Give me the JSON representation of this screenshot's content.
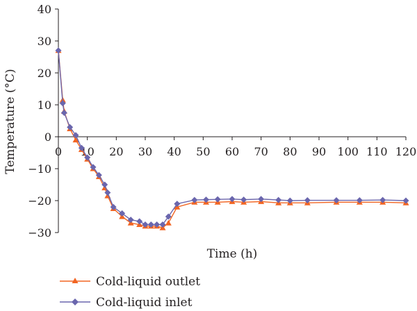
{
  "chart_data": {
    "type": "line",
    "xlabel": "Time (h)",
    "ylabel": "Temperature (°C)",
    "xlim": [
      0,
      120
    ],
    "ylim": [
      -30,
      40
    ],
    "xticks": [
      0,
      10,
      20,
      30,
      40,
      50,
      60,
      70,
      80,
      90,
      100,
      110,
      120
    ],
    "yticks": [
      40,
      30,
      20,
      10,
      0,
      -10,
      -20,
      -30
    ],
    "xtick_labels": [
      "0",
      "10",
      "20",
      "30",
      "40",
      "50",
      "60",
      "70",
      "80",
      "90",
      "100",
      "110",
      "120"
    ],
    "ytick_labels": [
      "40",
      "30",
      "20",
      "10",
      "0",
      "−10",
      "−20",
      "−30"
    ],
    "grid": false,
    "legend_position": "bottom-left",
    "series": [
      {
        "name": "Cold-liquid outlet",
        "color": "#f26522",
        "marker": "triangle",
        "x": [
          0,
          1.5,
          2,
          4,
          6,
          8,
          10,
          12,
          14,
          16,
          17,
          19,
          22,
          25,
          28,
          30,
          32,
          34,
          36,
          38,
          41,
          47,
          51,
          55,
          60,
          64,
          70,
          76,
          80,
          86,
          96,
          104,
          112,
          120
        ],
        "y": [
          27,
          11.5,
          8,
          2.5,
          -1,
          -4,
          -7,
          -10,
          -12.5,
          -16,
          -18.5,
          -22.5,
          -25,
          -27,
          -27.5,
          -28,
          -28,
          -28,
          -28.5,
          -27,
          -22,
          -20.5,
          -20.5,
          -20.5,
          -20.3,
          -20.5,
          -20.3,
          -20.7,
          -20.7,
          -20.7,
          -20.5,
          -20.5,
          -20.5,
          -20.7
        ]
      },
      {
        "name": "Cold-liquid inlet",
        "color": "#6a66ad",
        "marker": "diamond",
        "x": [
          0,
          1.5,
          2,
          4,
          6,
          8,
          10,
          12,
          14,
          16,
          17,
          19,
          22,
          25,
          28,
          30,
          32,
          34,
          36,
          38,
          41,
          47,
          51,
          55,
          60,
          64,
          70,
          76,
          80,
          86,
          96,
          104,
          112,
          120
        ],
        "y": [
          27,
          10.5,
          7.5,
          3,
          0.5,
          -3.5,
          -6.5,
          -9.5,
          -12,
          -15,
          -17.5,
          -22,
          -24,
          -26,
          -26.5,
          -27.5,
          -27.5,
          -27.5,
          -27.5,
          -25,
          -21,
          -19.8,
          -19.7,
          -19.6,
          -19.5,
          -19.7,
          -19.5,
          -19.8,
          -20,
          -19.9,
          -19.9,
          -19.9,
          -19.8,
          -20
        ]
      }
    ]
  }
}
